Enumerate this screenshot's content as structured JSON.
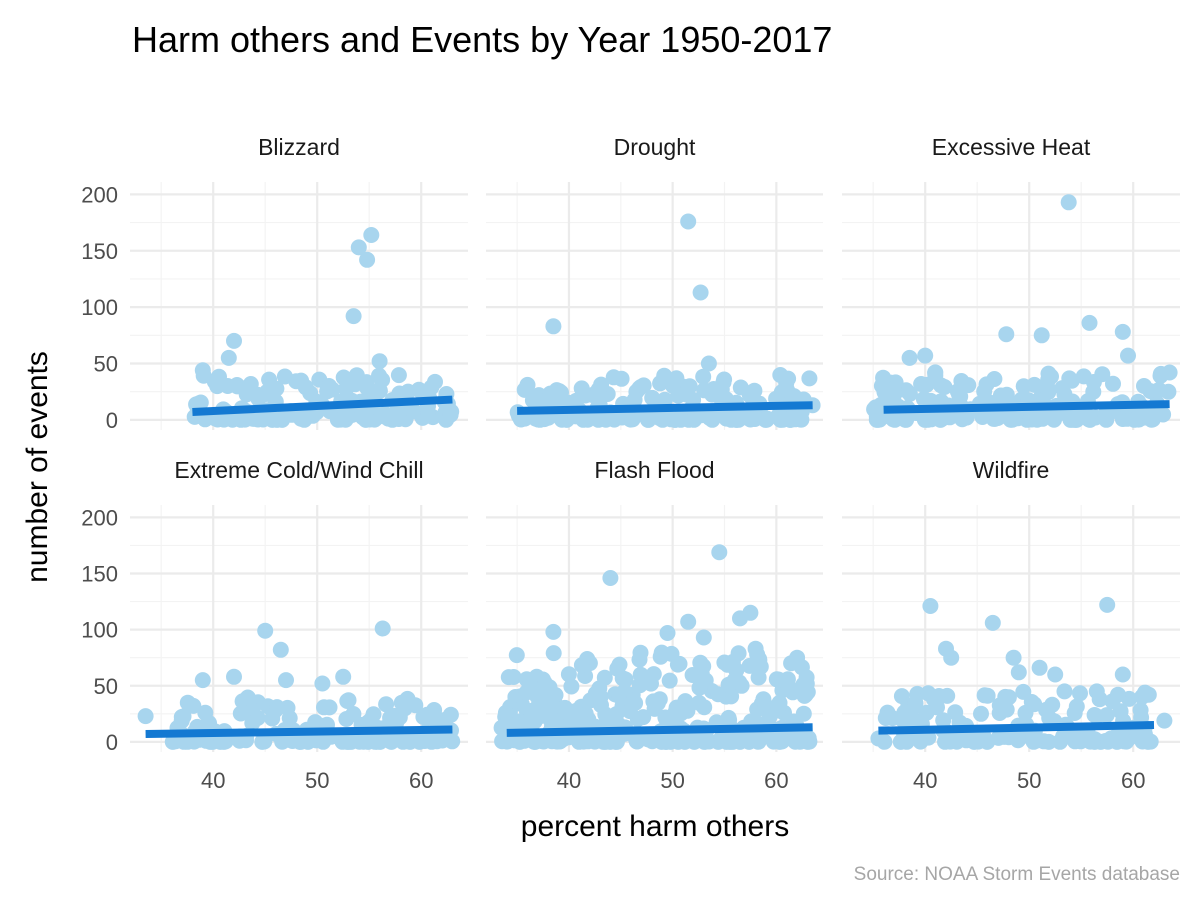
{
  "chart_data": {
    "type": "scatter",
    "title": "Harm others and Events by Year 1950-2017",
    "xlabel": "percent harm others",
    "ylabel": "number of events",
    "caption": "Source: NOAA Storm Events database",
    "xlim": [
      32,
      64.5
    ],
    "ylim": [
      -9,
      211
    ],
    "x_ticks": [
      40,
      50,
      60
    ],
    "y_ticks": [
      0,
      50,
      100,
      150,
      200
    ],
    "grid": true,
    "point_color": "#a8d5ee",
    "fit_color": "#1479d2",
    "panels": [
      {
        "name": "Blizzard",
        "fit": {
          "x": [
            38,
            63
          ],
          "y": [
            7,
            18
          ]
        },
        "outliers": [
          [
            42,
            70
          ],
          [
            53.5,
            92
          ],
          [
            54,
            153
          ],
          [
            54.8,
            142
          ],
          [
            55.2,
            164
          ],
          [
            56,
            52
          ],
          [
            41.5,
            55
          ],
          [
            39,
            44
          ]
        ],
        "cloud": {
          "x": [
            38,
            63
          ],
          "max": 40,
          "density": 170
        }
      },
      {
        "name": "Drought",
        "fit": {
          "x": [
            35,
            63.5
          ],
          "y": [
            8,
            13
          ]
        },
        "outliers": [
          [
            51.5,
            176
          ],
          [
            52.7,
            113
          ],
          [
            38.5,
            83
          ],
          [
            36,
            31
          ],
          [
            53.5,
            50
          ],
          [
            63.5,
            13
          ]
        ],
        "cloud": {
          "x": [
            35,
            63.5
          ],
          "max": 40,
          "density": 190
        }
      },
      {
        "name": "Excessive Heat",
        "fit": {
          "x": [
            36,
            63.5
          ],
          "y": [
            9,
            14
          ]
        },
        "outliers": [
          [
            53.8,
            193
          ],
          [
            47.8,
            76
          ],
          [
            51.2,
            75
          ],
          [
            55.8,
            86
          ],
          [
            59,
            78
          ],
          [
            59.5,
            57
          ],
          [
            63.5,
            42
          ],
          [
            38.5,
            55
          ],
          [
            40,
            57
          ]
        ],
        "cloud": {
          "x": [
            35,
            63.5
          ],
          "max": 45,
          "density": 200
        }
      },
      {
        "name": "Extreme Cold/Wind Chill",
        "fit": {
          "x": [
            33.5,
            63
          ],
          "y": [
            7,
            11
          ]
        },
        "outliers": [
          [
            45,
            99
          ],
          [
            46.5,
            82
          ],
          [
            56.3,
            101
          ],
          [
            39,
            55
          ],
          [
            42,
            58
          ],
          [
            47,
            55
          ],
          [
            50.5,
            52
          ],
          [
            52.5,
            58
          ],
          [
            33.5,
            23
          ]
        ],
        "cloud": {
          "x": [
            36,
            63
          ],
          "max": 40,
          "density": 180
        }
      },
      {
        "name": "Flash Flood",
        "fit": {
          "x": [
            34,
            63.5
          ],
          "y": [
            8,
            13
          ]
        },
        "outliers": [
          [
            54.5,
            169
          ],
          [
            44,
            146
          ],
          [
            51.5,
            107
          ],
          [
            49.5,
            97
          ],
          [
            56.5,
            110
          ],
          [
            57.5,
            115
          ],
          [
            38.5,
            98
          ],
          [
            58,
            83
          ],
          [
            62,
            75
          ],
          [
            58.5,
            67
          ],
          [
            53,
            93
          ]
        ],
        "cloud": {
          "x": [
            33.5,
            63.5
          ],
          "max": 80,
          "density": 330
        }
      },
      {
        "name": "Wildfire",
        "fit": {
          "x": [
            35.5,
            62
          ],
          "y": [
            10,
            15
          ]
        },
        "outliers": [
          [
            40.5,
            121
          ],
          [
            57.5,
            122
          ],
          [
            46.5,
            106
          ],
          [
            42,
            83
          ],
          [
            42.5,
            75
          ],
          [
            48.5,
            75
          ],
          [
            49,
            62
          ],
          [
            51,
            66
          ],
          [
            52.5,
            60
          ],
          [
            56.5,
            45
          ],
          [
            59,
            60
          ],
          [
            61.5,
            42
          ],
          [
            63,
            19
          ],
          [
            35.5,
            3
          ]
        ],
        "cloud": {
          "x": [
            36,
            62
          ],
          "max": 45,
          "density": 130
        }
      }
    ]
  }
}
